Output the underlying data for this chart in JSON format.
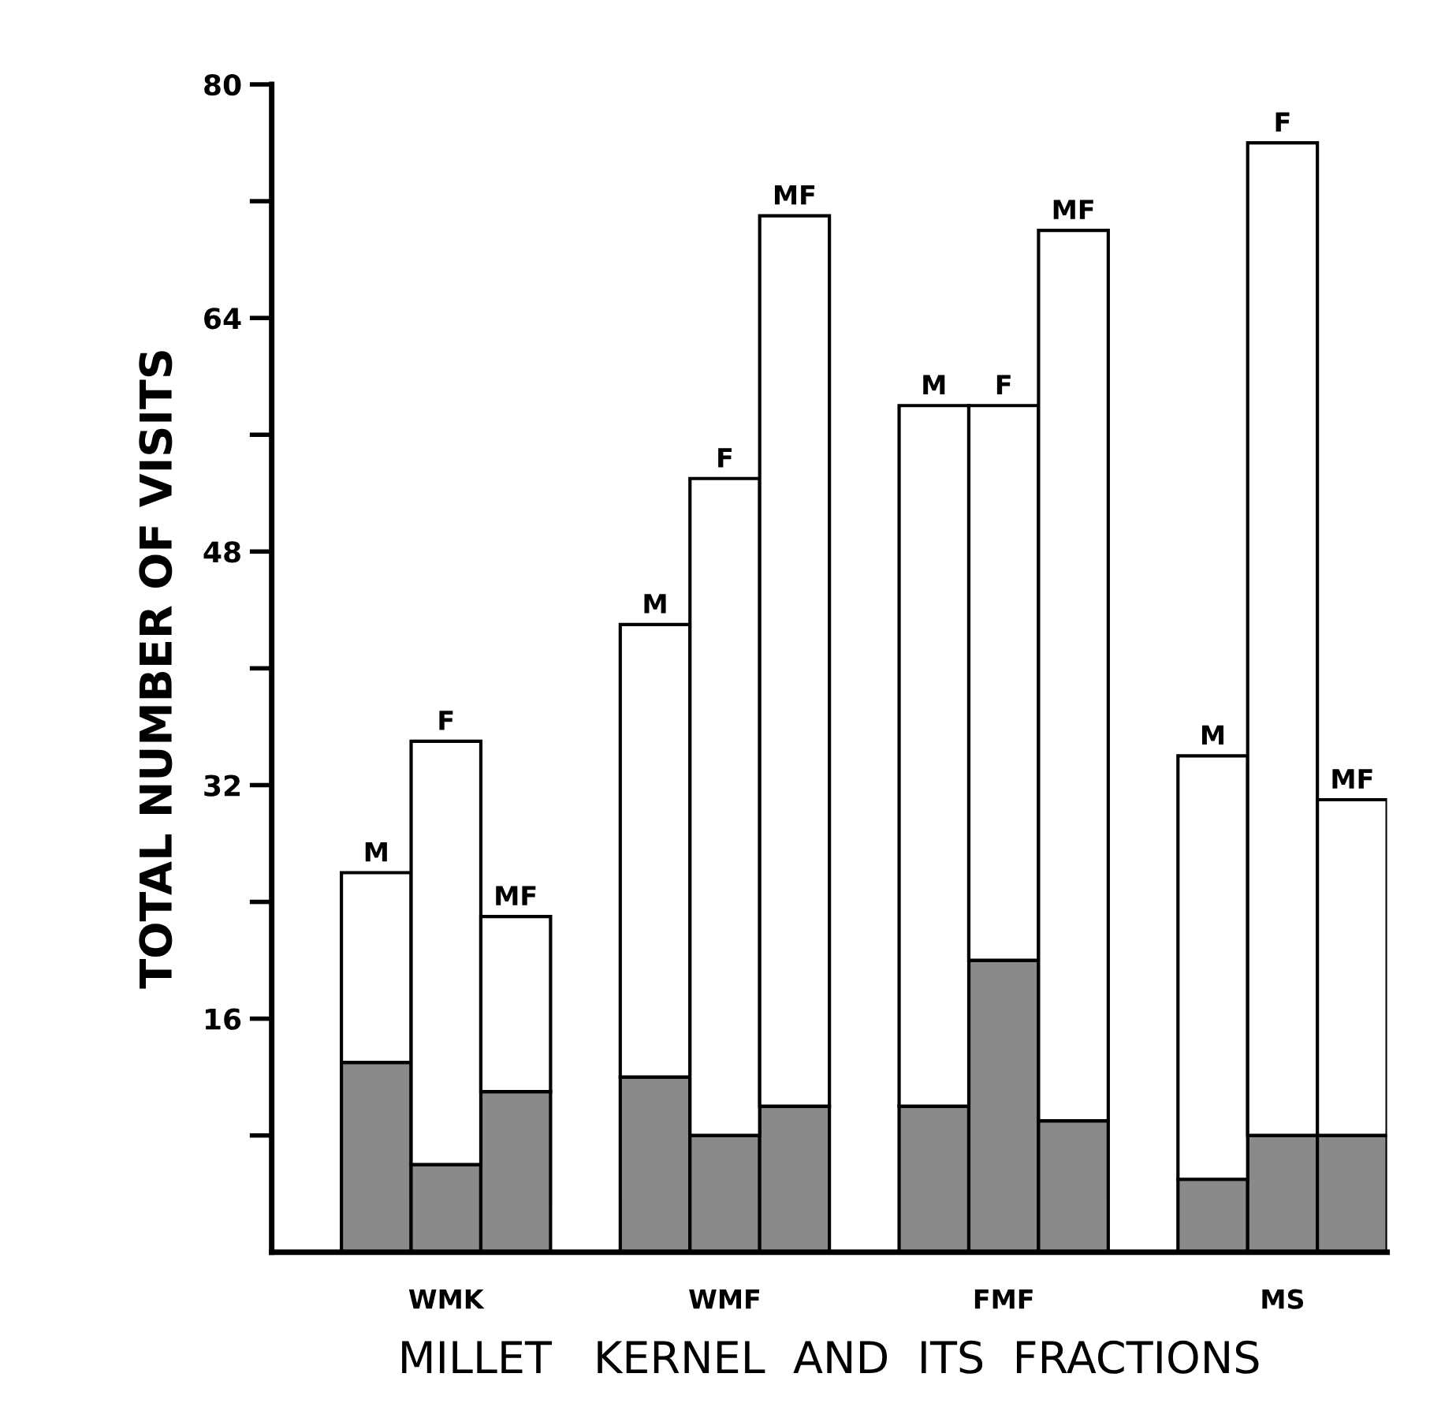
{
  "chart_data": {
    "type": "bar",
    "stacked": true,
    "categories": [
      null,
      "M",
      "F",
      "MF",
      null,
      "M",
      "F",
      "MF",
      null,
      "M",
      "F",
      "MF",
      null,
      "M",
      "F",
      "MF"
    ],
    "series": [
      {
        "color": "#8a8a8a",
        "values": [
          null,
          13,
          6,
          11,
          null,
          12,
          8,
          10,
          null,
          10,
          20,
          9,
          null,
          5,
          8,
          8
        ]
      },
      {
        "color": "#ffffff",
        "values": [
          null,
          13,
          29,
          12,
          null,
          31,
          45,
          61,
          null,
          48,
          38,
          61,
          null,
          29,
          68,
          23
        ]
      }
    ],
    "ylabel": "TOTAL NUMBER OF VISITS",
    "xlabel": "MILLET   KERNEL  AND  ITS  FRACTIONS",
    "annotations": [
      "WMK",
      "WMF",
      "FMF",
      "MS"
    ],
    "ylim": [
      0,
      80
    ],
    "yticks": [
      {
        "value": 8,
        "label": null
      },
      16,
      {
        "value": 24,
        "label": null
      },
      32,
      {
        "value": 40,
        "label": null
      },
      48,
      {
        "value": 56,
        "label": null
      },
      64,
      {
        "value": 72,
        "label": null
      },
      80
    ],
    "grid": false,
    "legend": false
  }
}
